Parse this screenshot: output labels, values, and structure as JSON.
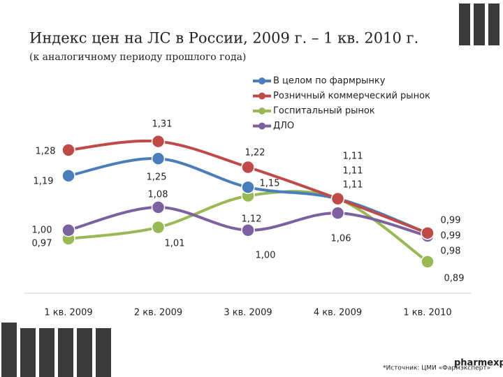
{
  "chart_data": {
    "type": "line",
    "title": "Индекс цен на ЛС в России, 2009 г. – 1 кв. 2010 г.",
    "subtitle": "(к аналогичному периоду прошлого года)",
    "categories": [
      "1 кв. 2009",
      "2 кв. 2009",
      "3 кв. 2009",
      "4 кв. 2009",
      "1 кв. 2010"
    ],
    "ylim": [
      0.78,
      1.56
    ],
    "series": [
      {
        "name": "В целом по фармрынку",
        "color": "#4a7ebb",
        "values": [
          1.19,
          1.25,
          1.15,
          1.11,
          0.99
        ],
        "value_labels": [
          "1,19",
          "1,25",
          "1,15",
          "1,11",
          "0,99"
        ]
      },
      {
        "name": "Розничный коммерческий рынок",
        "color": "#be4b48",
        "values": [
          1.28,
          1.31,
          1.22,
          1.11,
          0.99
        ],
        "value_labels": [
          "1,28",
          "1,31",
          "1,22",
          "1,11",
          "0,99"
        ]
      },
      {
        "name": "Госпитальный рынок",
        "color": "#98b954",
        "values": [
          0.97,
          1.01,
          1.12,
          1.11,
          0.89
        ],
        "value_labels": [
          "0,97",
          "1,01",
          "1,12",
          "1,11",
          "0,89"
        ]
      },
      {
        "name": "ДЛО",
        "color": "#7d60a0",
        "values": [
          1.0,
          1.08,
          1.0,
          1.06,
          0.98
        ],
        "value_labels": [
          "1,00",
          "1,08",
          "1,00",
          "1,06",
          "0,98"
        ]
      }
    ],
    "footnote": "*Источник: ЦМИ «Фармэксперт»",
    "logo": "pharmexpert"
  }
}
